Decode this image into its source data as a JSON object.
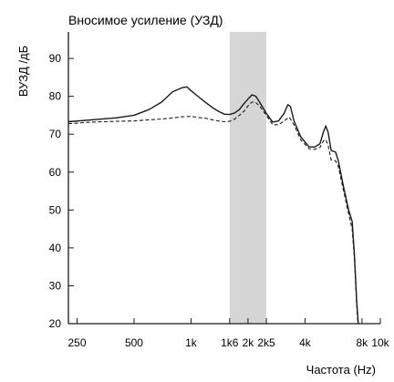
{
  "chart_data": {
    "type": "line",
    "title": "Вносимое усиление (УЗД)",
    "ylabel": "ВУЗД /дБ",
    "xlabel": "Частота (Hz)",
    "x_scale": "log",
    "xlim": [
      225,
      10000
    ],
    "ylim": [
      20,
      97
    ],
    "grid": false,
    "legend": "none",
    "x_ticks": [
      {
        "value": 250,
        "label": "250"
      },
      {
        "value": 500,
        "label": "500"
      },
      {
        "value": 1000,
        "label": "1k"
      },
      {
        "value": 1600,
        "label": "1k6"
      },
      {
        "value": 2000,
        "label": "2k"
      },
      {
        "value": 2500,
        "label": "2k5"
      },
      {
        "value": 4000,
        "label": "4k"
      },
      {
        "value": 8000,
        "label": "8k"
      },
      {
        "value": 10000,
        "label": "10k"
      }
    ],
    "y_ticks": [
      {
        "value": 20,
        "label": "20"
      },
      {
        "value": 30,
        "label": "30"
      },
      {
        "value": 40,
        "label": "40"
      },
      {
        "value": 50,
        "label": "50"
      },
      {
        "value": 60,
        "label": "60"
      },
      {
        "value": 70,
        "label": "70"
      },
      {
        "value": 80,
        "label": "80"
      },
      {
        "value": 90,
        "label": "90"
      }
    ],
    "highlight_band": {
      "x_from": 1600,
      "x_to": 2500,
      "color": "#d6d6d6"
    },
    "series": [
      {
        "style": "solid",
        "color": "#1a1a1a",
        "points": [
          [
            225,
            73.3
          ],
          [
            300,
            73.8
          ],
          [
            400,
            74.3
          ],
          [
            500,
            75.0
          ],
          [
            600,
            76.5
          ],
          [
            700,
            78.5
          ],
          [
            800,
            81.2
          ],
          [
            900,
            82.3
          ],
          [
            950,
            82.5
          ],
          [
            1000,
            81.5
          ],
          [
            1100,
            79.8
          ],
          [
            1200,
            78.3
          ],
          [
            1300,
            77.0
          ],
          [
            1400,
            76.0
          ],
          [
            1500,
            75.3
          ],
          [
            1600,
            75.2
          ],
          [
            1700,
            75.6
          ],
          [
            1800,
            76.5
          ],
          [
            1900,
            78.0
          ],
          [
            2000,
            79.3
          ],
          [
            2100,
            80.4
          ],
          [
            2200,
            80.0
          ],
          [
            2300,
            78.5
          ],
          [
            2500,
            75.5
          ],
          [
            2700,
            73.2
          ],
          [
            2900,
            73.5
          ],
          [
            3100,
            75.5
          ],
          [
            3250,
            77.8
          ],
          [
            3350,
            77.3
          ],
          [
            3500,
            73.5
          ],
          [
            3800,
            69.3
          ],
          [
            4200,
            66.7
          ],
          [
            4500,
            66.6
          ],
          [
            4800,
            67.5
          ],
          [
            5000,
            70.5
          ],
          [
            5150,
            72.2
          ],
          [
            5300,
            70.5
          ],
          [
            5500,
            65.7
          ],
          [
            5800,
            65.3
          ],
          [
            6000,
            63.0
          ],
          [
            6400,
            56.0
          ],
          [
            6800,
            50.0
          ],
          [
            7100,
            47.0
          ],
          [
            7300,
            38.0
          ],
          [
            7500,
            26.0
          ],
          [
            7650,
            20.0
          ]
        ]
      },
      {
        "style": "dashed",
        "color": "#1a1a1a",
        "points": [
          [
            225,
            72.8
          ],
          [
            300,
            73.2
          ],
          [
            400,
            73.4
          ],
          [
            500,
            73.5
          ],
          [
            600,
            73.8
          ],
          [
            700,
            74.0
          ],
          [
            800,
            74.3
          ],
          [
            900,
            74.6
          ],
          [
            1000,
            74.7
          ],
          [
            1100,
            74.4
          ],
          [
            1200,
            74.2
          ],
          [
            1300,
            73.8
          ],
          [
            1400,
            73.5
          ],
          [
            1500,
            73.3
          ],
          [
            1600,
            73.4
          ],
          [
            1700,
            74.0
          ],
          [
            1800,
            75.0
          ],
          [
            1900,
            76.0
          ],
          [
            2000,
            77.5
          ],
          [
            2100,
            78.5
          ],
          [
            2200,
            78.3
          ],
          [
            2300,
            77.5
          ],
          [
            2500,
            75.0
          ],
          [
            2700,
            72.5
          ],
          [
            2900,
            72.5
          ],
          [
            3100,
            73.5
          ],
          [
            3300,
            74.5
          ],
          [
            3500,
            72.5
          ],
          [
            3800,
            68.5
          ],
          [
            4200,
            66.2
          ],
          [
            4500,
            66.0
          ],
          [
            4800,
            66.5
          ],
          [
            5000,
            68.2
          ],
          [
            5150,
            68.6
          ],
          [
            5300,
            67.0
          ],
          [
            5500,
            63.2
          ],
          [
            5800,
            63.0
          ],
          [
            6000,
            61.5
          ],
          [
            6400,
            55.0
          ],
          [
            6800,
            49.0
          ],
          [
            7100,
            45.0
          ],
          [
            7300,
            37.0
          ],
          [
            7500,
            25.0
          ],
          [
            7620,
            20.0
          ]
        ]
      }
    ]
  }
}
